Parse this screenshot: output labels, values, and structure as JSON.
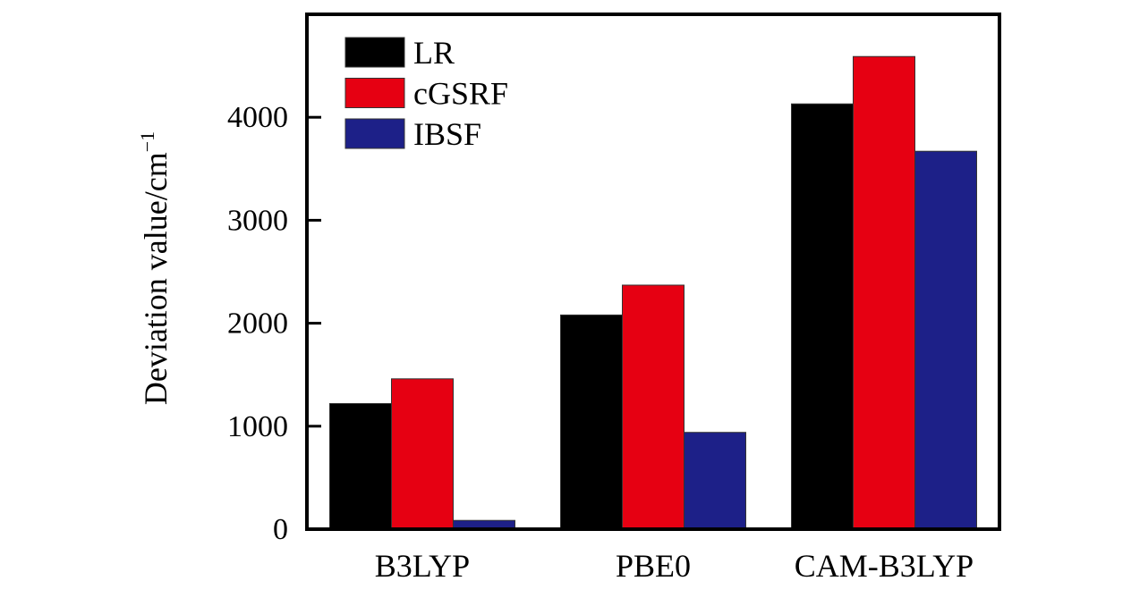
{
  "chart_data": {
    "type": "bar",
    "title": "",
    "xlabel": "",
    "ylabel": "Deviation value/cm",
    "ylabel_superscript": "−1",
    "categories": [
      "B3LYP",
      "PBE0",
      "CAM-B3LYP"
    ],
    "series": [
      {
        "name": "LR",
        "color": "#000000",
        "values": [
          1220,
          2080,
          4130
        ]
      },
      {
        "name": "cGSRF",
        "color": "#e60012",
        "values": [
          1460,
          2370,
          4590
        ]
      },
      {
        "name": "IBSF",
        "color": "#1d2088",
        "values": [
          85,
          940,
          3670
        ]
      }
    ],
    "ylim": [
      0,
      5000
    ],
    "yticks": [
      0,
      1000,
      2000,
      3000,
      4000
    ],
    "ytick_labels": [
      "0",
      "1000",
      "2000",
      "3000",
      "4000"
    ],
    "grid": false,
    "legend_position": "top-left"
  }
}
